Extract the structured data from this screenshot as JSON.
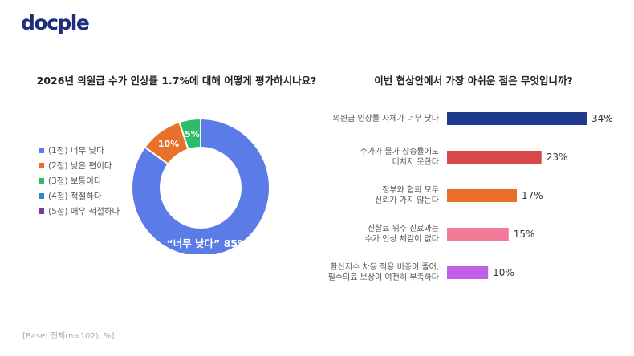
{
  "logo": "docple",
  "footer": "[Base: 전체(n=102), %]",
  "chart_data": [
    {
      "type": "pie",
      "title": "2026년 의원급 수가 인상률 1.7%에 대해 어떻게 평가하시나요?",
      "categories": [
        "(1점) 너무 낮다",
        "(2점) 낮은 편이다",
        "(3점) 보통이다",
        "(4점) 적절하다",
        "(5점) 매우 적절하다"
      ],
      "values": [
        85,
        10,
        5,
        0,
        0
      ],
      "colors": [
        "#5b7be6",
        "#e8702a",
        "#2dbd6a",
        "#2a8bc7",
        "#7a3aa0"
      ],
      "data_labels": [
        "“너무 낮다” 85%",
        "10%",
        "5%",
        "",
        ""
      ],
      "legend": "left"
    },
    {
      "type": "bar",
      "orientation": "horizontal",
      "title": "이번 협상안에서 가장 아쉬운 점은 무엇입니까?",
      "categories": [
        [
          "의원급 인상률 자체가 너무 낮다"
        ],
        [
          "수가가 물가 상승률에도",
          "미치지 못한다"
        ],
        [
          "정부와 협회 모두",
          "신뢰가 가지 않는다"
        ],
        [
          "진찰료 위주 진료과는",
          "수가 인상 체감이 없다"
        ],
        [
          "환산지수 차등 적용 비중이 줄어,",
          "필수의료 보상이 여전히 부족하다"
        ]
      ],
      "values": [
        34,
        23,
        17,
        15,
        10
      ],
      "value_labels": [
        "34%",
        "23%",
        "17%",
        "15%",
        "10%"
      ],
      "colors": [
        "#1f3a8a",
        "#d94848",
        "#e8702a",
        "#f07a98",
        "#c05ee8"
      ],
      "xlim": [
        0,
        34
      ]
    }
  ]
}
